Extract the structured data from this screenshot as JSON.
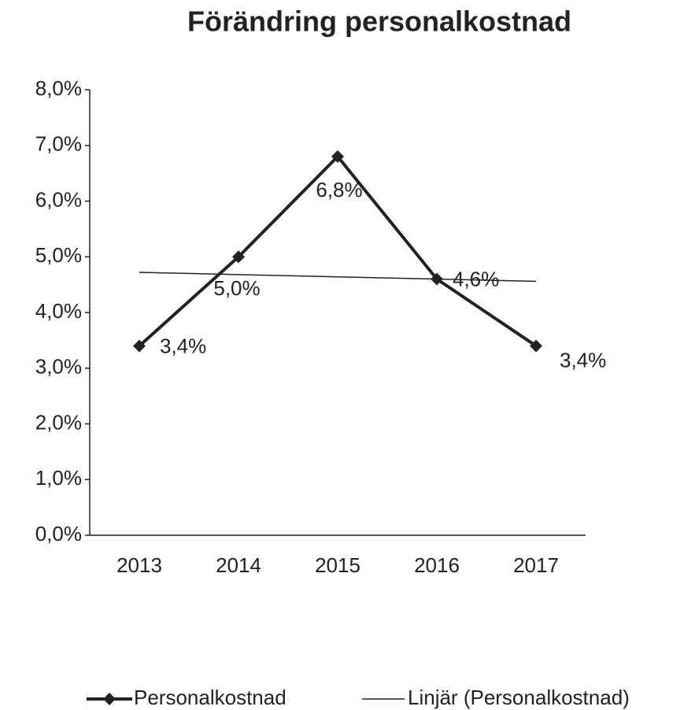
{
  "chart_data": {
    "type": "line",
    "title": "Förändring personalkostnad",
    "categories": [
      "2013",
      "2014",
      "2015",
      "2016",
      "2017"
    ],
    "series": [
      {
        "name": "Personalkostnad",
        "color": "#222222",
        "values": [
          3.4,
          5.0,
          6.8,
          4.6,
          3.4
        ],
        "value_labels": [
          "3,4%",
          "5,0%",
          "6,8%",
          "4,6%",
          "3,4%"
        ]
      },
      {
        "name": "Linjär (Personalkostnad)",
        "color": "#222222",
        "values": [
          4.72,
          4.68,
          4.64,
          4.6,
          4.56
        ]
      }
    ],
    "ylim": [
      0,
      8
    ],
    "yticks": [
      {
        "value": 0,
        "label": "0,0%"
      },
      {
        "value": 1,
        "label": "1,0%"
      },
      {
        "value": 2,
        "label": "2,0%"
      },
      {
        "value": 3,
        "label": "3,0%"
      },
      {
        "value": 4,
        "label": "4,0%"
      },
      {
        "value": 5,
        "label": "5,0%"
      },
      {
        "value": 6,
        "label": "6,0%"
      },
      {
        "value": 7,
        "label": "7,0%"
      },
      {
        "value": 8,
        "label": "8,0%"
      }
    ],
    "grid": false,
    "legend": "bottom"
  }
}
